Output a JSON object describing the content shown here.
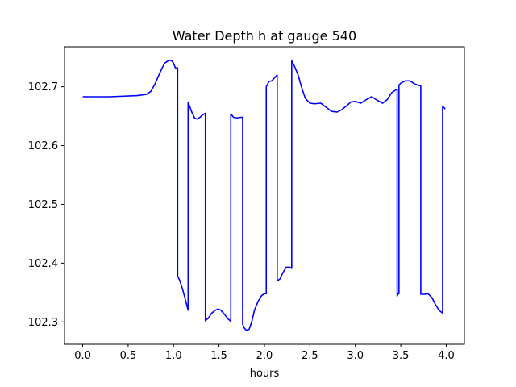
{
  "chart_data": {
    "type": "line",
    "title": "Water Depth h at gauge 540",
    "xlabel": "hours",
    "ylabel": "",
    "xlim": [
      -0.2,
      4.2
    ],
    "ylim": [
      102.262,
      102.768
    ],
    "xticks": [
      0.0,
      0.5,
      1.0,
      1.5,
      2.0,
      2.5,
      3.0,
      3.5,
      4.0
    ],
    "xtick_labels": [
      "0.0",
      "0.5",
      "1.0",
      "1.5",
      "2.0",
      "2.5",
      "3.0",
      "3.5",
      "4.0"
    ],
    "yticks": [
      102.3,
      102.4,
      102.5,
      102.6,
      102.7
    ],
    "ytick_labels": [
      "102.3",
      "102.4",
      "102.5",
      "102.6",
      "102.7"
    ],
    "grid": false,
    "line_color": "#0000ff",
    "series": [
      {
        "x": [
          0.0,
          0.3,
          0.6,
          0.7,
          0.75,
          0.8,
          0.85,
          0.9,
          0.95,
          0.98,
          1.0,
          1.02,
          1.045,
          1.045,
          1.07,
          1.1,
          1.13,
          1.16,
          1.16,
          1.2,
          1.23,
          1.26,
          1.29,
          1.32,
          1.35,
          1.35,
          1.38,
          1.42,
          1.46,
          1.49,
          1.52,
          1.56,
          1.6,
          1.63,
          1.63,
          1.66,
          1.7,
          1.74,
          1.76,
          1.76,
          1.78,
          1.8,
          1.83,
          1.86,
          1.89,
          1.93,
          1.97,
          2.0,
          2.02,
          2.02,
          2.05,
          2.08,
          2.11,
          2.14,
          2.14,
          2.17,
          2.2,
          2.24,
          2.28,
          2.3,
          2.3,
          2.33,
          2.37,
          2.41,
          2.45,
          2.5,
          2.55,
          2.62,
          2.68,
          2.74,
          2.8,
          2.85,
          2.9,
          2.95,
          3.0,
          3.06,
          3.12,
          3.18,
          3.24,
          3.3,
          3.35,
          3.4,
          3.45,
          3.46,
          3.46,
          3.47,
          3.48,
          3.48,
          3.5,
          3.55,
          3.6,
          3.65,
          3.7,
          3.72,
          3.72,
          3.76,
          3.8,
          3.84,
          3.88,
          3.92,
          3.96,
          3.96,
          3.99
        ],
        "y": [
          102.683,
          102.683,
          102.685,
          102.687,
          102.692,
          102.706,
          102.724,
          102.74,
          102.745,
          102.744,
          102.74,
          102.732,
          102.732,
          102.378,
          102.37,
          102.355,
          102.338,
          102.32,
          102.674,
          102.657,
          102.647,
          102.645,
          102.648,
          102.652,
          102.655,
          102.302,
          102.306,
          102.315,
          102.32,
          102.322,
          102.32,
          102.313,
          102.305,
          102.301,
          102.654,
          102.648,
          102.647,
          102.648,
          102.648,
          102.296,
          102.289,
          102.286,
          102.287,
          102.3,
          102.32,
          102.335,
          102.345,
          102.348,
          102.348,
          102.7,
          102.709,
          102.71,
          102.715,
          102.72,
          102.37,
          102.373,
          102.383,
          102.393,
          102.393,
          102.391,
          102.744,
          102.735,
          102.72,
          102.698,
          102.68,
          102.672,
          102.671,
          102.672,
          102.665,
          102.658,
          102.657,
          102.661,
          102.667,
          102.674,
          102.675,
          102.672,
          102.678,
          102.683,
          102.677,
          102.672,
          102.678,
          102.69,
          102.695,
          102.695,
          102.344,
          102.348,
          102.348,
          102.703,
          102.706,
          102.71,
          102.71,
          102.705,
          102.702,
          102.702,
          102.347,
          102.347,
          102.348,
          102.342,
          102.33,
          102.32,
          102.315,
          102.667,
          102.662
        ]
      }
    ]
  }
}
